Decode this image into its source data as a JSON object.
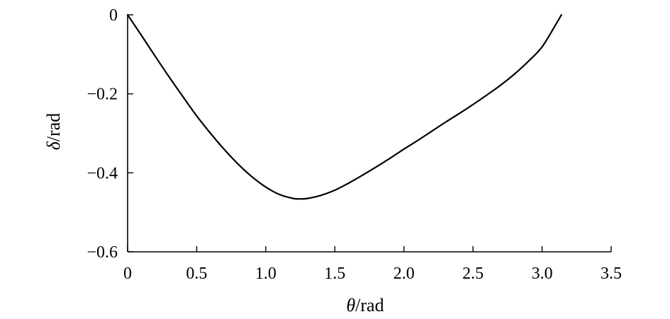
{
  "chart_data": {
    "type": "line",
    "xlabel": {
      "symbol": "θ",
      "unit": "/rad"
    },
    "ylabel": {
      "symbol": "δ",
      "unit": "/rad"
    },
    "xlim": [
      0,
      3.5
    ],
    "ylim": [
      -0.6,
      0
    ],
    "x_ticks": [
      {
        "value": 0,
        "label": "0"
      },
      {
        "value": 0.5,
        "label": "0.5"
      },
      {
        "value": 1.0,
        "label": "1.0"
      },
      {
        "value": 1.5,
        "label": "1.5"
      },
      {
        "value": 2.0,
        "label": "2.0"
      },
      {
        "value": 2.5,
        "label": "2.5"
      },
      {
        "value": 3.0,
        "label": "3.0"
      },
      {
        "value": 3.5,
        "label": "3.5"
      }
    ],
    "y_ticks": [
      {
        "value": 0,
        "label": "0"
      },
      {
        "value": -0.2,
        "label": "−0.2"
      },
      {
        "value": -0.4,
        "label": "−0.4"
      },
      {
        "value": -0.6,
        "label": "−0.6"
      }
    ],
    "grid": false,
    "legend": "none",
    "line_color": "#000000",
    "series": [
      {
        "x": [
          0,
          0.1,
          0.2,
          0.3,
          0.4,
          0.5,
          0.6,
          0.7,
          0.8,
          0.9,
          1.0,
          1.1,
          1.2,
          1.25,
          1.3,
          1.4,
          1.5,
          1.6,
          1.7,
          1.8,
          1.9,
          2.0,
          2.1,
          2.2,
          2.3,
          2.4,
          2.5,
          2.6,
          2.7,
          2.8,
          2.9,
          3.0,
          3.1,
          3.14
        ],
        "y": [
          0,
          -0.052,
          -0.105,
          -0.157,
          -0.207,
          -0.256,
          -0.3,
          -0.341,
          -0.378,
          -0.41,
          -0.436,
          -0.455,
          -0.465,
          -0.466,
          -0.465,
          -0.457,
          -0.444,
          -0.426,
          -0.406,
          -0.385,
          -0.363,
          -0.34,
          -0.318,
          -0.295,
          -0.272,
          -0.25,
          -0.227,
          -0.203,
          -0.178,
          -0.15,
          -0.118,
          -0.081,
          -0.024,
          0
        ]
      }
    ]
  }
}
